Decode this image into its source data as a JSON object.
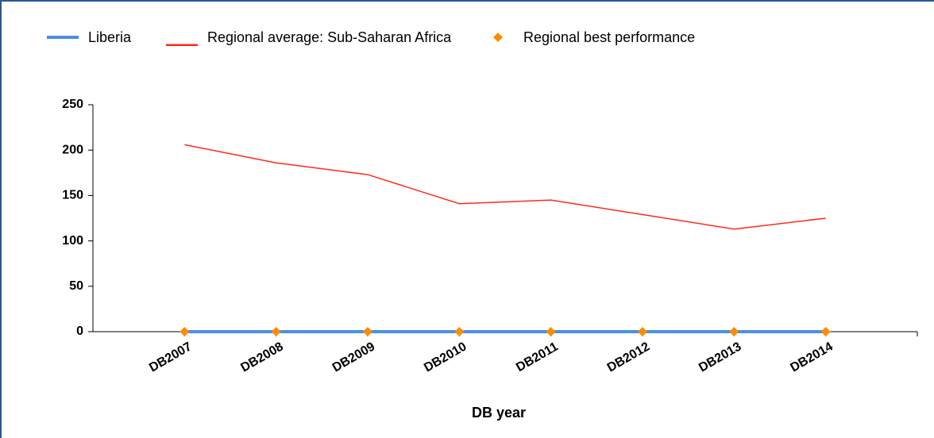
{
  "chart_data": {
    "type": "line",
    "xlabel": "DB year",
    "categories": [
      "DB2007",
      "DB2008",
      "DB2009",
      "DB2010",
      "DB2011",
      "DB2012",
      "DB2013",
      "DB2014"
    ],
    "series": [
      {
        "name": "Liberia",
        "color": "#4a90e2",
        "style": "line",
        "values": [
          0,
          0,
          0,
          0,
          0,
          0,
          0,
          0
        ]
      },
      {
        "name": "Regional average: Sub-Saharan Africa",
        "color": "#ff2a1a",
        "style": "line",
        "values": [
          206,
          186,
          173,
          141,
          145,
          129,
          113,
          125
        ]
      },
      {
        "name": "Regional best performance",
        "color": "#ff8c00",
        "style": "markers",
        "values": [
          0,
          0,
          0,
          0,
          0,
          0,
          0,
          0
        ]
      }
    ],
    "ylim": [
      0,
      250
    ],
    "yticks": [
      0,
      50,
      100,
      150,
      200,
      250
    ]
  }
}
